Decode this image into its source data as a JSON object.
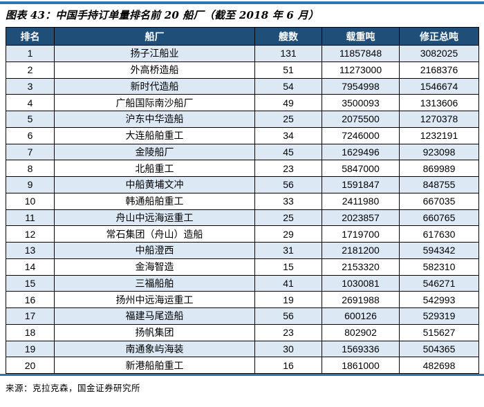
{
  "figure": {
    "title": "图表 43：中国手持订单量排名前 20 船厂（截至 2018 年 6 月）",
    "source": "来源：克拉克森，国金证券研究所"
  },
  "colors": {
    "rule_blue": "#2E75B6",
    "header_bg": "#1F4E79",
    "header_text": "#FFFFFF",
    "stripe_bg": "#DCE9F5",
    "border": "#000000"
  },
  "chart_data": {
    "type": "table",
    "title": "中国手持订单量排名前 20 船厂（截至 2018 年 6 月）",
    "columns": [
      "排名",
      "船厂",
      "艘数",
      "载重吨",
      "修正总吨"
    ],
    "rows": [
      [
        "1",
        "扬子江船业",
        "131",
        "11857848",
        "3082025"
      ],
      [
        "2",
        "外高桥造船",
        "51",
        "11273000",
        "2168376"
      ],
      [
        "3",
        "新时代造船",
        "54",
        "7954998",
        "1546674"
      ],
      [
        "4",
        "广船国际南沙船厂",
        "49",
        "3500093",
        "1313606"
      ],
      [
        "5",
        "沪东中华造船",
        "25",
        "2075500",
        "1270378"
      ],
      [
        "6",
        "大连船舶重工",
        "34",
        "7246000",
        "1232191"
      ],
      [
        "7",
        "金陵船厂",
        "45",
        "1629496",
        "923098"
      ],
      [
        "8",
        "北船重工",
        "23",
        "5847000",
        "869989"
      ],
      [
        "9",
        "中船黄埔文冲",
        "56",
        "1591847",
        "848755"
      ],
      [
        "10",
        "韩通船舶重工",
        "33",
        "2411980",
        "667035"
      ],
      [
        "11",
        "舟山中远海运重工",
        "25",
        "2023857",
        "660765"
      ],
      [
        "12",
        "常石集团（舟山）造船",
        "29",
        "1719700",
        "617630"
      ],
      [
        "13",
        "中船澄西",
        "31",
        "2181200",
        "594342"
      ],
      [
        "14",
        "金海智造",
        "15",
        "2153320",
        "582310"
      ],
      [
        "15",
        "三福船舶",
        "41",
        "1030081",
        "546271"
      ],
      [
        "16",
        "扬州中远海运重工",
        "19",
        "2691988",
        "542993"
      ],
      [
        "17",
        "福建马尾造船",
        "56",
        "600126",
        "529319"
      ],
      [
        "18",
        "扬帆集团",
        "23",
        "802902",
        "515627"
      ],
      [
        "19",
        "南通象屿海装",
        "30",
        "1569336",
        "504365"
      ],
      [
        "20",
        "新港船舶重工",
        "16",
        "1861000",
        "482698"
      ]
    ]
  }
}
